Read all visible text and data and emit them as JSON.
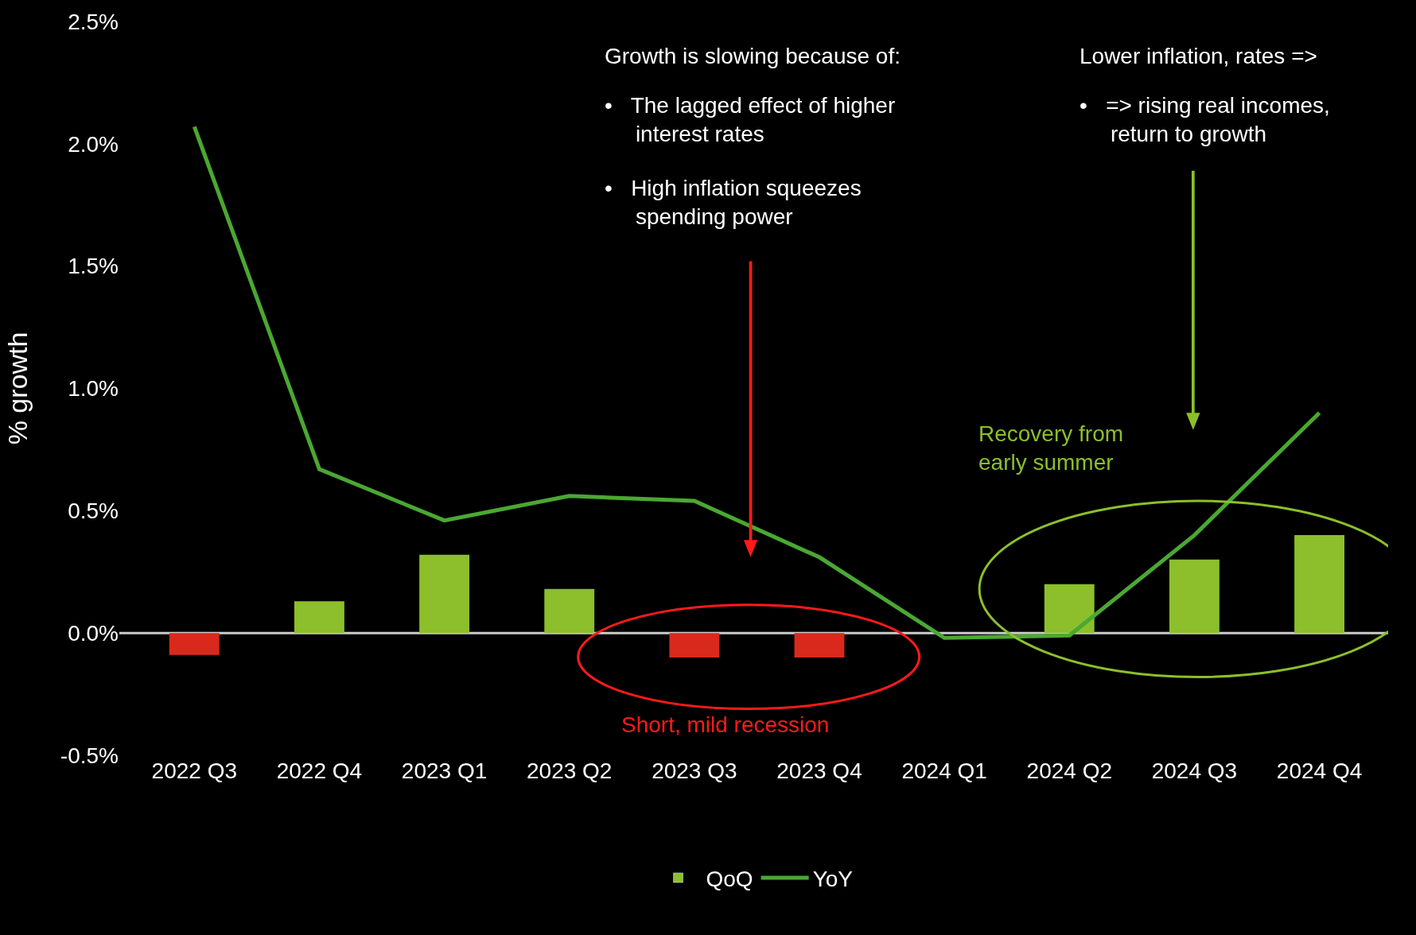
{
  "chart_data": {
    "type": "bar",
    "ylabel": "% growth",
    "categories": [
      "2022 Q3",
      "2022 Q4",
      "2023 Q1",
      "2023 Q2",
      "2023 Q3",
      "2023 Q4",
      "2024 Q1",
      "2024 Q2",
      "2024 Q3",
      "2024 Q4"
    ],
    "series": [
      {
        "name": "QoQ",
        "color": "#8cbf2b",
        "colors": [
          "#d9291c",
          "#8cbf2b",
          "#8cbf2b",
          "#8cbf2b",
          "#d9291c",
          "#d9291c",
          "#8cbf2b",
          "#8cbf2b",
          "#8cbf2b",
          "#8cbf2b"
        ],
        "values": [
          -0.09,
          0.13,
          0.32,
          0.18,
          -0.1,
          -0.1,
          null,
          0.2,
          0.3,
          0.4
        ]
      },
      {
        "name": "YoY",
        "type": "line",
        "color": "#4aa832",
        "values": [
          2.07,
          0.67,
          0.46,
          0.56,
          0.54,
          0.31,
          -0.02,
          -0.01,
          0.4,
          0.9
        ]
      }
    ],
    "ylim": [
      -0.5,
      2.5
    ],
    "yticks": [
      {
        "value": -0.5,
        "label": "-0.5%"
      },
      {
        "value": 0,
        "label": "0.0%"
      },
      {
        "value": 0.5,
        "label": "0.5%"
      },
      {
        "value": 1,
        "label": "1.0%"
      },
      {
        "value": 1.5,
        "label": "1.5%"
      },
      {
        "value": 2,
        "label": "2.0%"
      },
      {
        "value": 2.5,
        "label": "2.5%"
      }
    ],
    "ref_lines": [
      {
        "axis": "y",
        "value": 0,
        "color": "#cccccc"
      }
    ],
    "grid": false,
    "legend": "bottom",
    "marker": "none",
    "line_style": "solid",
    "annotations": [
      "Growth is slowing because of:",
      "•   The lagged effect of higher\n     interest rates",
      "•   High inflation squeezes\n     spending power",
      "Lower inflation, rates =>",
      "•   => rising real incomes,\n     return to growth",
      "Short, mild recession",
      "Recovery from\nearly summer"
    ]
  }
}
